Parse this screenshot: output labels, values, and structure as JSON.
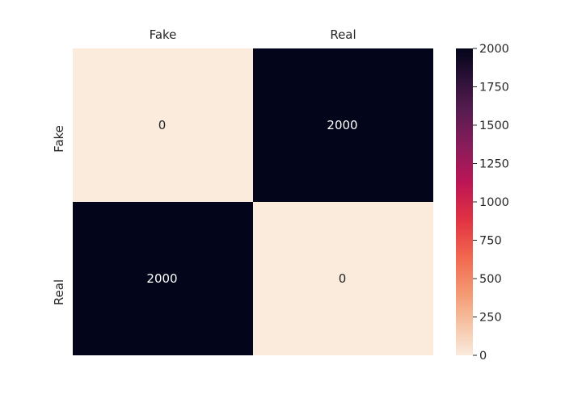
{
  "chart_data": {
    "type": "heatmap",
    "x_categories": [
      "Fake",
      "Real"
    ],
    "y_categories": [
      "Fake",
      "Real"
    ],
    "x_tick_position": "top",
    "values": [
      [
        0,
        2000
      ],
      [
        2000,
        0
      ]
    ],
    "annotations": [
      [
        "0",
        "2000"
      ],
      [
        "2000",
        "0"
      ]
    ],
    "colorbar": {
      "range": [
        0,
        2000
      ],
      "ticks": [
        "0",
        "250",
        "500",
        "750",
        "1000",
        "1250",
        "1500",
        "1750",
        "2000"
      ],
      "colormap": "rocket",
      "low_color": "#faebdd",
      "high_color": "#03051a"
    },
    "title": "",
    "xlabel": "",
    "ylabel": "",
    "grid": false
  }
}
